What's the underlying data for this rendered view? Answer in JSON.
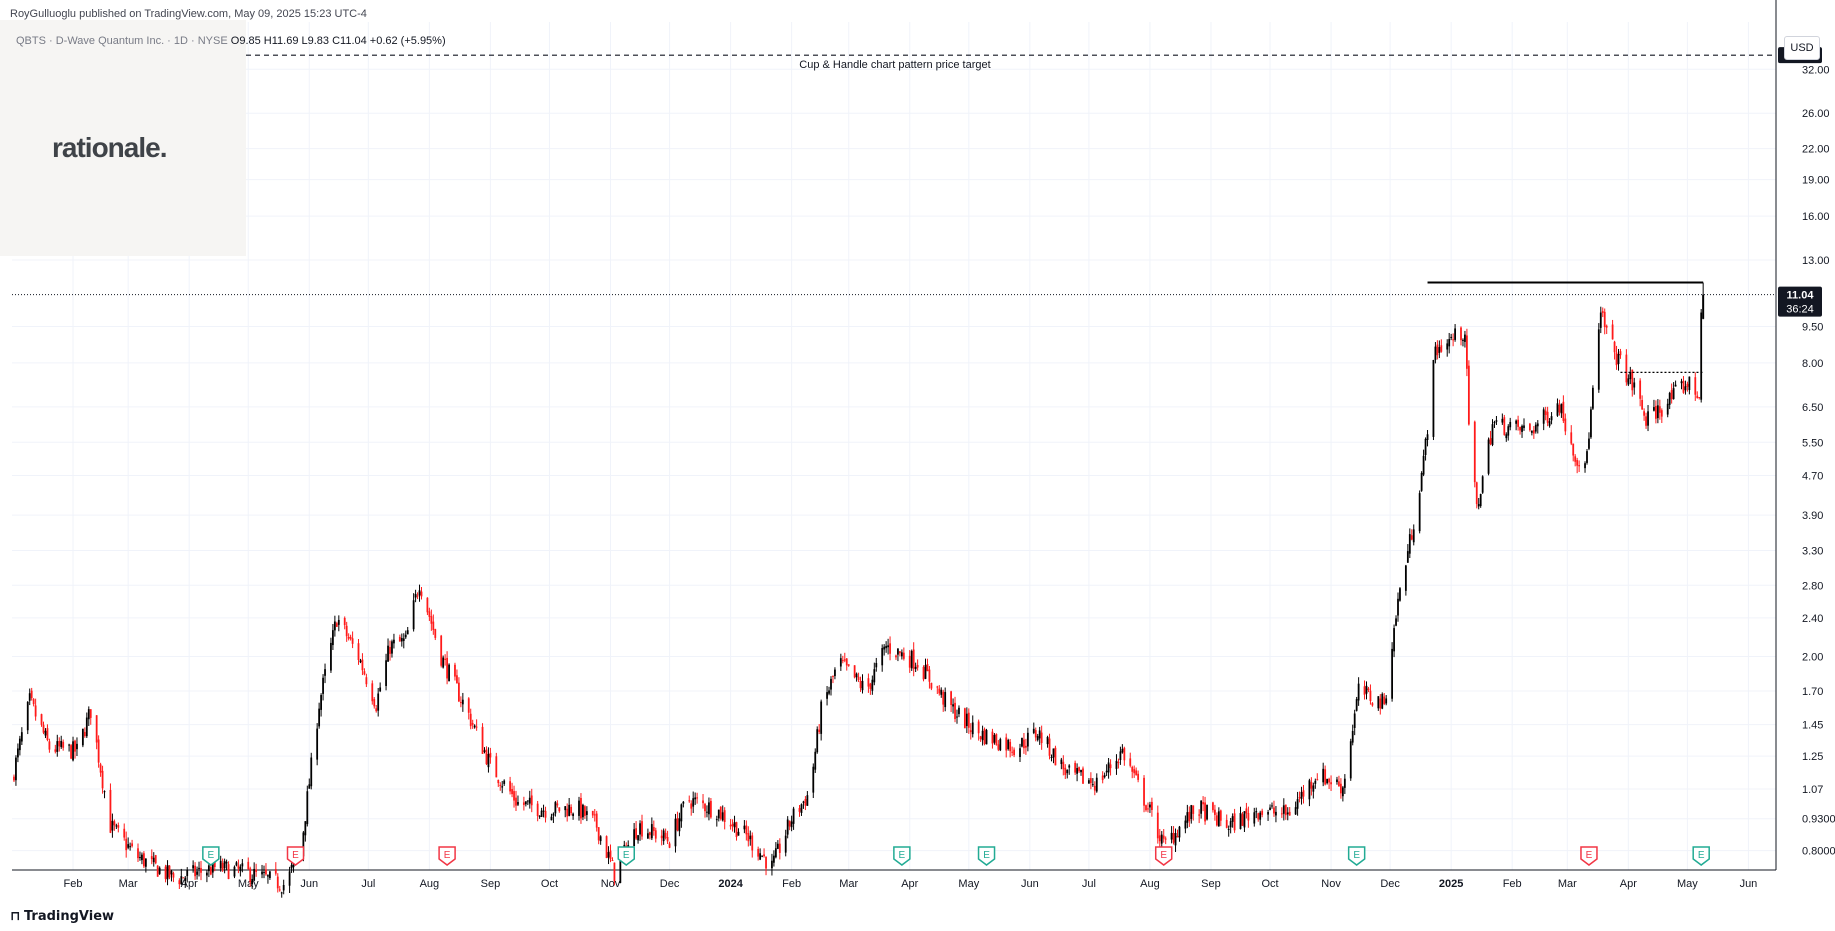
{
  "header": {
    "publisher": "RoyGulluoglu published on TradingView.com, May 09, 2025 15:23 UTC-4",
    "symbol_line": "QBTS · D-Wave Quantum Inc. · 1D · NYSE",
    "ohlc": "O9.85 H11.69 L9.83 C11.04 +0.62 (+5.95%)"
  },
  "brand_logo": "rationale.",
  "currency_button": "USD",
  "footer_brand": "TradingView",
  "colors": {
    "up": "#000000",
    "down": "#ff1a1a",
    "grid": "#f0f3fa",
    "axis": "#131722"
  },
  "chart_data": {
    "type": "candlestick",
    "scale": "log",
    "ylim": [
      0.73,
      40
    ],
    "y_ticks": [
      0.8,
      0.93,
      1.07,
      1.25,
      1.45,
      1.7,
      2.0,
      2.4,
      2.8,
      3.3,
      3.9,
      4.7,
      5.5,
      6.5,
      8.0,
      9.5,
      13.0,
      16.0,
      19.0,
      22.0,
      26.0,
      32.0
    ],
    "y_tick_labels": [
      "0.8000",
      "0.9300",
      "1.07",
      "1.25",
      "1.45",
      "1.70",
      "2.00",
      "2.40",
      "2.80",
      "3.30",
      "3.90",
      "4.70",
      "5.50",
      "6.50",
      "8.00",
      "9.50",
      "13.00",
      "16.00",
      "19.00",
      "22.00",
      "26.00",
      "32.00"
    ],
    "x_range": [
      "2023-01-01",
      "2025-06-15"
    ],
    "x_ticks": [
      {
        "date": "2023-02-01",
        "label": "Feb"
      },
      {
        "date": "2023-03-01",
        "label": "Mar"
      },
      {
        "date": "2023-04-01",
        "label": "Apr"
      },
      {
        "date": "2023-05-01",
        "label": "May"
      },
      {
        "date": "2023-06-01",
        "label": "Jun"
      },
      {
        "date": "2023-07-01",
        "label": "Jul"
      },
      {
        "date": "2023-08-01",
        "label": "Aug"
      },
      {
        "date": "2023-09-01",
        "label": "Sep"
      },
      {
        "date": "2023-10-01",
        "label": "Oct"
      },
      {
        "date": "2023-11-01",
        "label": "Nov"
      },
      {
        "date": "2023-12-01",
        "label": "Dec"
      },
      {
        "date": "2024-01-01",
        "label": "2024"
      },
      {
        "date": "2024-02-01",
        "label": "Feb"
      },
      {
        "date": "2024-03-01",
        "label": "Mar"
      },
      {
        "date": "2024-04-01",
        "label": "Apr"
      },
      {
        "date": "2024-05-01",
        "label": "May"
      },
      {
        "date": "2024-06-01",
        "label": "Jun"
      },
      {
        "date": "2024-07-01",
        "label": "Jul"
      },
      {
        "date": "2024-08-01",
        "label": "Aug"
      },
      {
        "date": "2024-09-01",
        "label": "Sep"
      },
      {
        "date": "2024-10-01",
        "label": "Oct"
      },
      {
        "date": "2024-11-01",
        "label": "Nov"
      },
      {
        "date": "2024-12-01",
        "label": "Dec"
      },
      {
        "date": "2025-01-01",
        "label": "2025"
      },
      {
        "date": "2025-02-01",
        "label": "Feb"
      },
      {
        "date": "2025-03-01",
        "label": "Mar"
      },
      {
        "date": "2025-04-01",
        "label": "Apr"
      },
      {
        "date": "2025-05-01",
        "label": "May"
      },
      {
        "date": "2025-06-01",
        "label": "Jun"
      }
    ],
    "price_path": [
      [
        "2023-01-01",
        1.12
      ],
      [
        "2023-01-10",
        1.62
      ],
      [
        "2023-01-20",
        1.3
      ],
      [
        "2023-02-03",
        1.28
      ],
      [
        "2023-02-10",
        1.55
      ],
      [
        "2023-02-20",
        0.9
      ],
      [
        "2023-03-05",
        0.78
      ],
      [
        "2023-03-25",
        0.7
      ],
      [
        "2023-04-15",
        0.74
      ],
      [
        "2023-05-01",
        0.72
      ],
      [
        "2023-05-20",
        0.68
      ],
      [
        "2023-05-28",
        0.82
      ],
      [
        "2023-06-06",
        1.6
      ],
      [
        "2023-06-15",
        2.4
      ],
      [
        "2023-06-26",
        2.0
      ],
      [
        "2023-07-05",
        1.6
      ],
      [
        "2023-07-12",
        2.1
      ],
      [
        "2023-07-20",
        2.15
      ],
      [
        "2023-07-27",
        2.85
      ],
      [
        "2023-08-07",
        2.0
      ],
      [
        "2023-08-20",
        1.55
      ],
      [
        "2023-09-01",
        1.2
      ],
      [
        "2023-09-15",
        1.0
      ],
      [
        "2023-10-01",
        0.97
      ],
      [
        "2023-10-15",
        0.98
      ],
      [
        "2023-10-25",
        0.9
      ],
      [
        "2023-11-03",
        0.72
      ],
      [
        "2023-11-15",
        0.9
      ],
      [
        "2023-12-01",
        0.84
      ],
      [
        "2023-12-10",
        1.02
      ],
      [
        "2023-12-25",
        0.97
      ],
      [
        "2024-01-10",
        0.85
      ],
      [
        "2024-01-22",
        0.74
      ],
      [
        "2024-02-01",
        0.93
      ],
      [
        "2024-02-10",
        1.05
      ],
      [
        "2024-02-16",
        1.55
      ],
      [
        "2024-02-25",
        1.95
      ],
      [
        "2024-03-10",
        1.7
      ],
      [
        "2024-03-20",
        2.1
      ],
      [
        "2024-04-05",
        1.95
      ],
      [
        "2024-04-20",
        1.6
      ],
      [
        "2024-05-05",
        1.4
      ],
      [
        "2024-05-25",
        1.3
      ],
      [
        "2024-06-05",
        1.4
      ],
      [
        "2024-06-20",
        1.15
      ],
      [
        "2024-07-05",
        1.1
      ],
      [
        "2024-07-18",
        1.28
      ],
      [
        "2024-08-01",
        0.96
      ],
      [
        "2024-08-08",
        0.82
      ],
      [
        "2024-08-25",
        0.98
      ],
      [
        "2024-09-10",
        0.9
      ],
      [
        "2024-09-25",
        0.97
      ],
      [
        "2024-10-10",
        0.95
      ],
      [
        "2024-10-25",
        1.15
      ],
      [
        "2024-11-07",
        1.08
      ],
      [
        "2024-11-15",
        1.7
      ],
      [
        "2024-11-28",
        1.6
      ],
      [
        "2024-12-05",
        2.6
      ],
      [
        "2024-12-12",
        3.6
      ],
      [
        "2024-12-18",
        5.0
      ],
      [
        "2024-12-24",
        8.5
      ],
      [
        "2025-01-02",
        9.0
      ],
      [
        "2025-01-08",
        9.3
      ],
      [
        "2025-01-10",
        6.0
      ],
      [
        "2025-01-14",
        4.0
      ],
      [
        "2025-01-22",
        6.0
      ],
      [
        "2025-02-10",
        5.8
      ],
      [
        "2025-02-25",
        6.6
      ],
      [
        "2025-03-05",
        5.2
      ],
      [
        "2025-03-10",
        4.8
      ],
      [
        "2025-03-18",
        10.0
      ],
      [
        "2025-03-25",
        8.4
      ],
      [
        "2025-04-05",
        7.0
      ],
      [
        "2025-04-10",
        6.1
      ],
      [
        "2025-04-20",
        6.6
      ],
      [
        "2025-05-01",
        7.3
      ],
      [
        "2025-05-06",
        6.9
      ],
      [
        "2025-05-07",
        7.0
      ],
      [
        "2025-05-08",
        10.2
      ],
      [
        "2025-05-09",
        11.04
      ]
    ],
    "resistance_line": {
      "price": 11.69,
      "from": "2024-12-20",
      "to": "2025-05-09"
    },
    "handle_line": {
      "price": 7.65,
      "from": "2025-03-28",
      "to": "2025-05-09"
    },
    "price_target": {
      "price": 34.2,
      "label": "Cup & Handle chart pattern price target",
      "value_label": "34.20"
    },
    "last_price": {
      "price": 11.04,
      "value_label": "11.04",
      "countdown": "36:24"
    },
    "earnings_markers": [
      {
        "date": "2023-04-12",
        "type": "E",
        "color": "#22ab94"
      },
      {
        "date": "2023-05-25",
        "type": "E",
        "color": "#f23645"
      },
      {
        "date": "2023-08-10",
        "type": "E",
        "color": "#f23645"
      },
      {
        "date": "2023-11-09",
        "type": "E",
        "color": "#22ab94"
      },
      {
        "date": "2024-03-28",
        "type": "E",
        "color": "#22ab94"
      },
      {
        "date": "2024-05-10",
        "type": "E",
        "color": "#22ab94"
      },
      {
        "date": "2024-08-08",
        "type": "E",
        "color": "#f23645"
      },
      {
        "date": "2024-11-14",
        "type": "E",
        "color": "#22ab94"
      },
      {
        "date": "2025-03-12",
        "type": "E",
        "color": "#f23645"
      },
      {
        "date": "2025-05-08",
        "type": "E",
        "color": "#22ab94"
      }
    ]
  }
}
